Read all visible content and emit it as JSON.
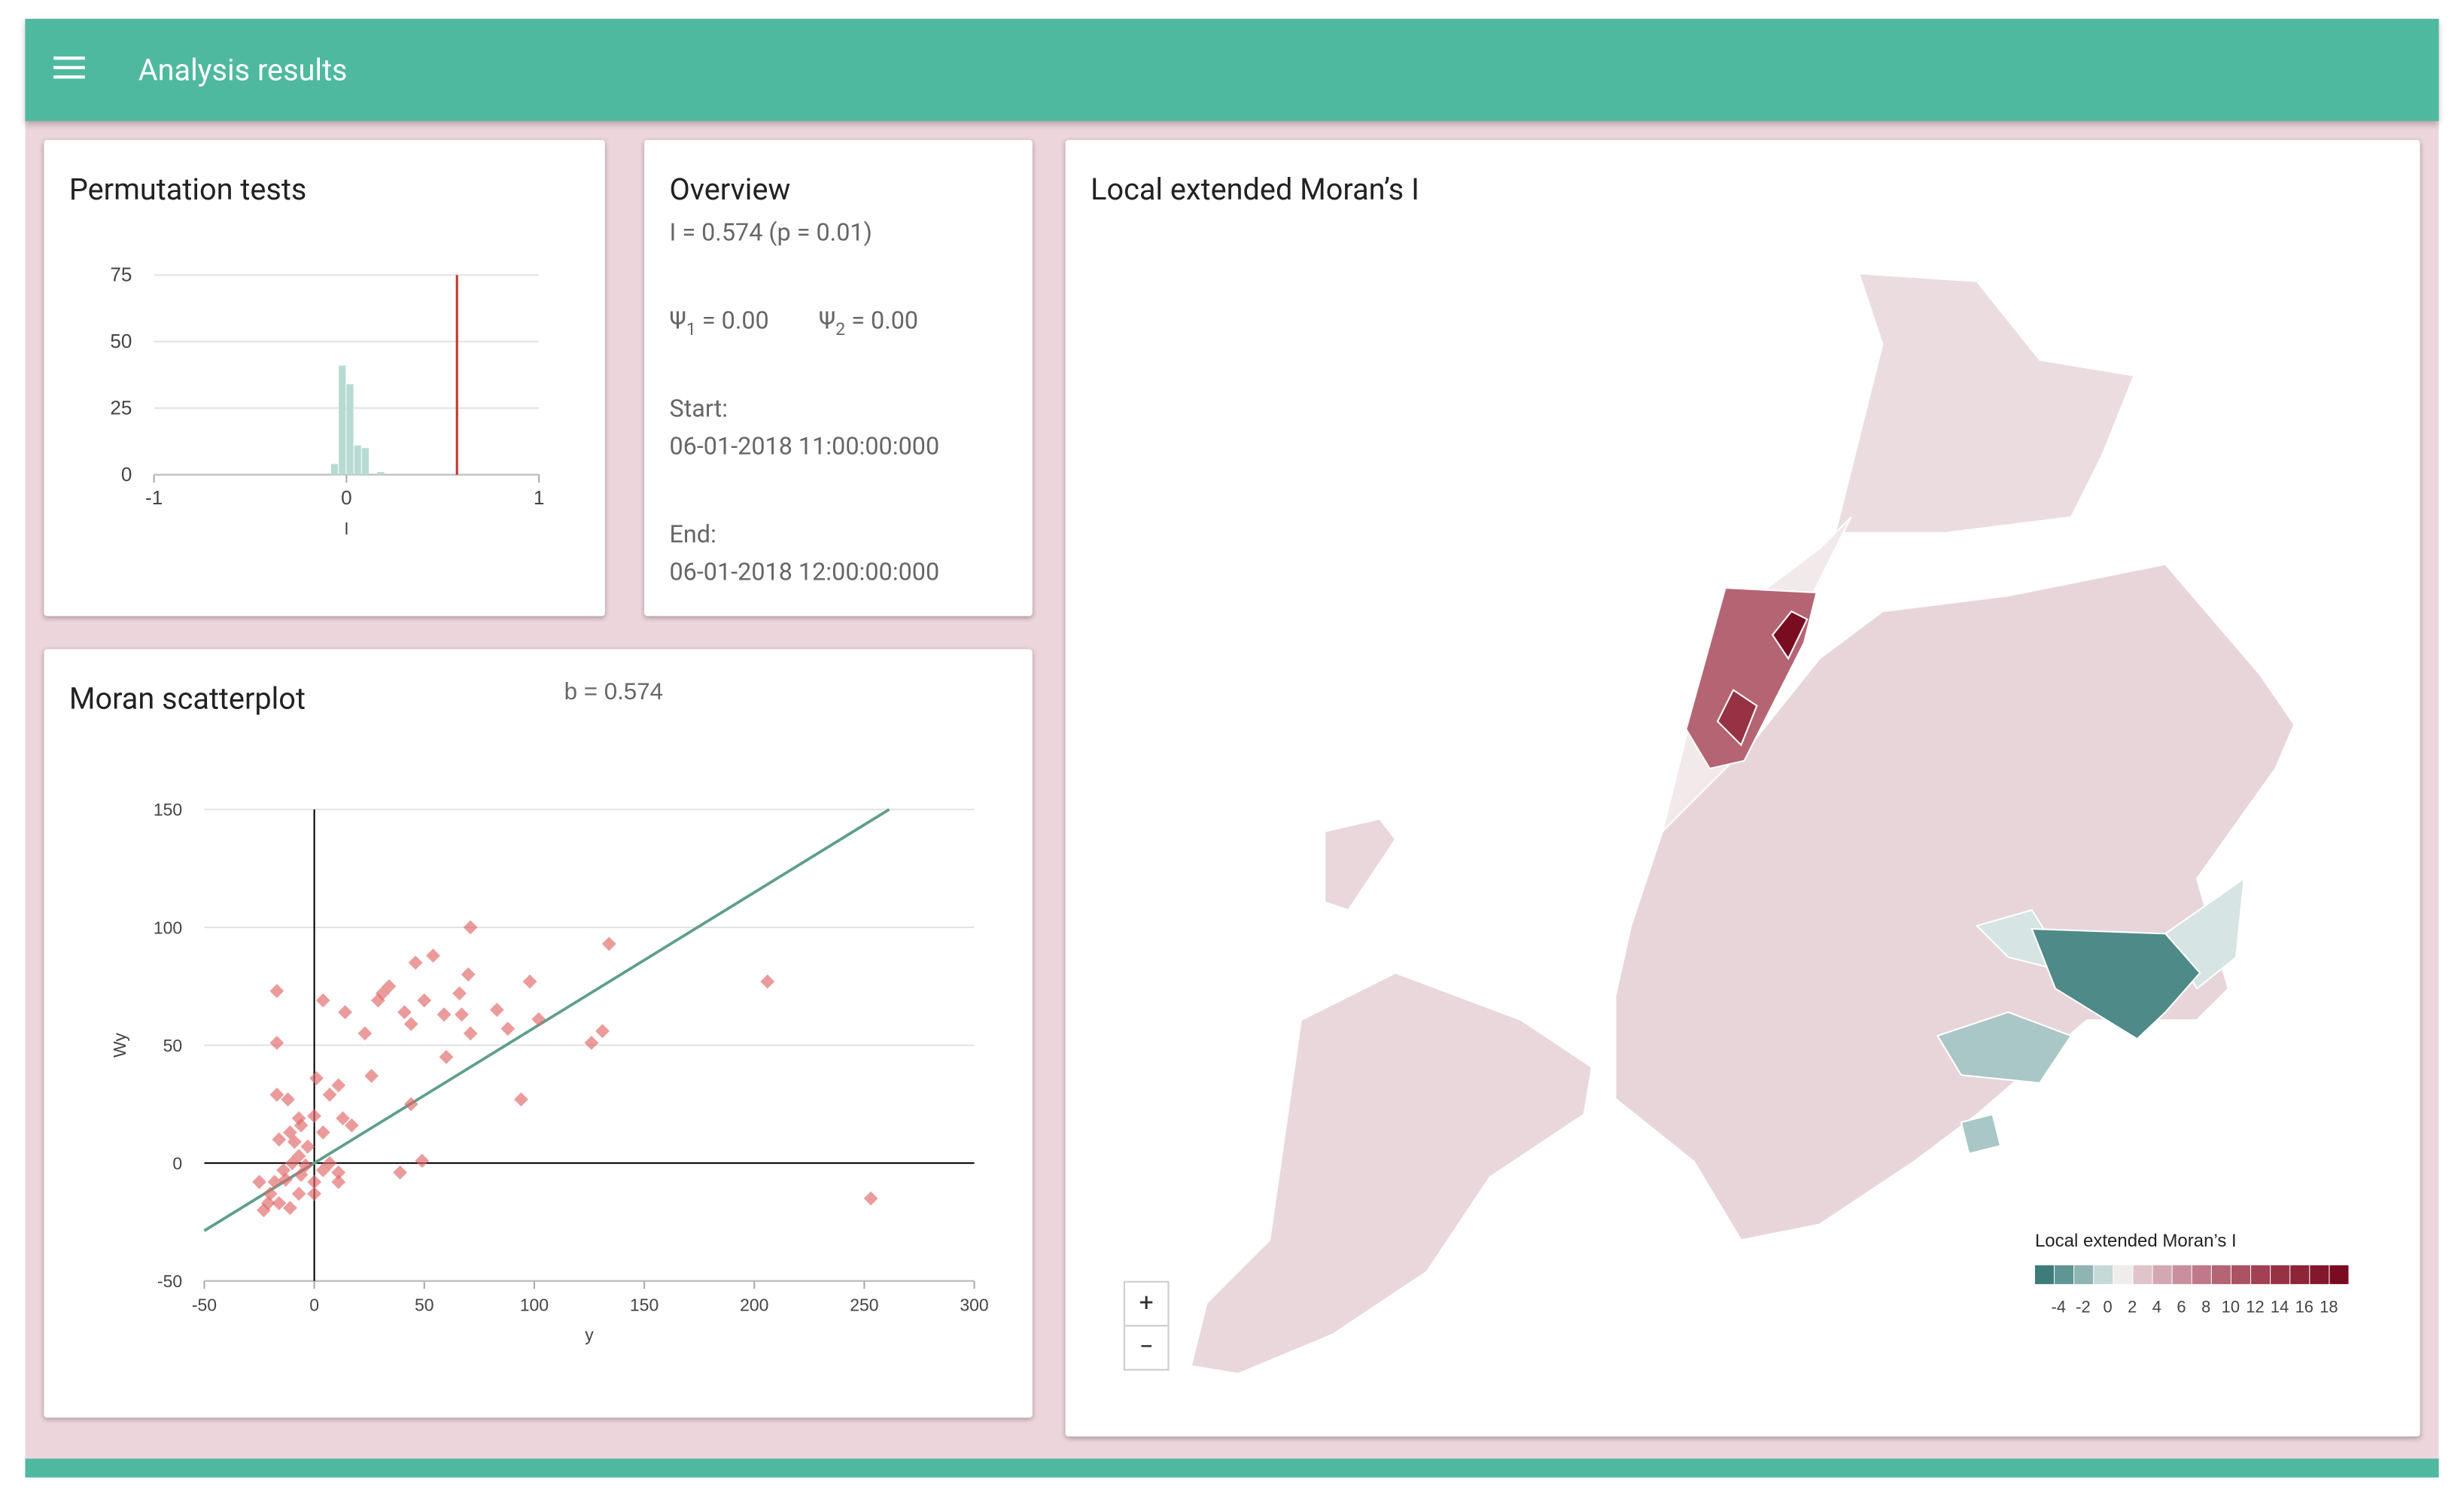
{
  "header": {
    "title": "Analysis results"
  },
  "overview": {
    "title": "Overview",
    "stat": "I = 0.574 (p = 0.01)",
    "psi1": {
      "symbol": "Ψ",
      "sub": "1",
      "text": " = 0.00"
    },
    "psi2": {
      "symbol": "Ψ",
      "sub": "2",
      "text": " = 0.00"
    },
    "start_label": "Start:",
    "start": "06-01-2018 11:00:00:000",
    "end_label": "End:",
    "end": "06-01-2018 12:00:00:000"
  },
  "map": {
    "title": "Local extended Moran’s I",
    "zoom": [
      "+",
      "−"
    ],
    "legend": {
      "title": "Local extended Moran’s I",
      "ticks": [
        -4,
        -2,
        0,
        2,
        4,
        6,
        8,
        10,
        12,
        14,
        16,
        18
      ],
      "colors": [
        "#3d7c7a",
        "#5f9593",
        "#8fb4b2",
        "#c4d9d8",
        "#f1ecec",
        "#e0c4ca",
        "#d4a8b2",
        "#c98f9c",
        "#bf7988",
        "#b56474",
        "#ab5263",
        "#a14153",
        "#973245",
        "#8d2438",
        "#83172c",
        "#7a0c22"
      ]
    }
  },
  "chart_data": [
    {
      "type": "histogram",
      "title": "Permutation tests",
      "xlabel": "I",
      "bins": [
        -0.08,
        -0.04,
        0,
        0.04,
        0.08,
        0.12,
        0.16,
        0.2
      ],
      "values": [
        4,
        41,
        34,
        11,
        10,
        0,
        1
      ],
      "color": "#b7dbd3",
      "observed": 0.574,
      "observed_color": "#c0392b",
      "xlim": [
        -1,
        1
      ],
      "xticks": [
        -1,
        0,
        1
      ],
      "ylim": [
        0,
        75
      ],
      "yticks": [
        0,
        25,
        50,
        75
      ],
      "grid": true
    },
    {
      "type": "scatter",
      "title": "Moran scatterplot",
      "annotation": "b = 0.574",
      "slope": 0.574,
      "line_color": "#5e9e8c",
      "xlabel": "y",
      "ylabel": "Wy",
      "color": "#e06666",
      "x": [
        -17,
        -17,
        -17,
        -12,
        -11,
        -16,
        -7,
        -6,
        4,
        14,
        23,
        29,
        31,
        34,
        41,
        44,
        46,
        54,
        50,
        59,
        66,
        70,
        67,
        71,
        71,
        83,
        88,
        98,
        102,
        126,
        131,
        134,
        94,
        60,
        44,
        26,
        11,
        1,
        7,
        0,
        4,
        13,
        17,
        39,
        49,
        206,
        253,
        -10,
        -7,
        -4,
        -13,
        -20,
        -16,
        -11,
        -21,
        -7,
        0,
        4,
        11,
        7,
        -3,
        -9,
        -25,
        -14,
        11,
        0,
        -6,
        -18,
        -23
      ],
      "values": [
        73,
        51,
        29,
        27,
        13,
        10,
        19,
        16,
        69,
        64,
        55,
        69,
        72,
        75,
        64,
        59,
        85,
        88,
        69,
        63,
        72,
        80,
        63,
        55,
        100,
        65,
        57,
        77,
        61,
        51,
        56,
        93,
        27,
        45,
        25,
        37,
        33,
        36,
        29,
        20,
        13,
        19,
        16,
        -4,
        1,
        77,
        -15,
        0,
        3,
        -1,
        -7,
        -13,
        -17,
        -19,
        -17,
        -13,
        -8,
        -3,
        -8,
        0,
        7,
        9,
        -8,
        -3,
        -4,
        -13,
        -5,
        -8,
        -20
      ],
      "xlim": [
        -50,
        300
      ],
      "xticks": [
        -50,
        0,
        50,
        100,
        150,
        200,
        250,
        300
      ],
      "ylim": [
        -50,
        150
      ],
      "yticks": [
        -50,
        0,
        50,
        100,
        150
      ],
      "grid": true
    }
  ]
}
